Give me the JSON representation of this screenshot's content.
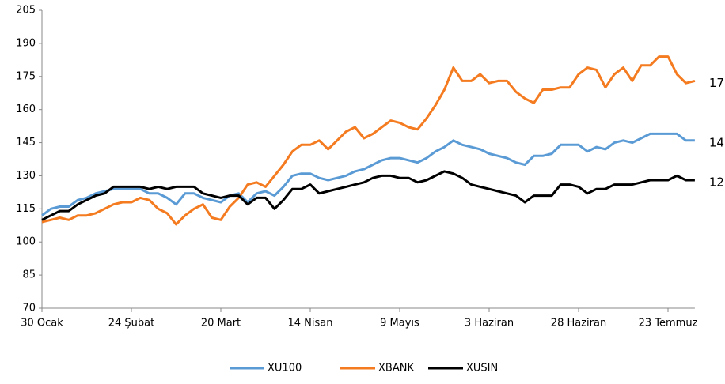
{
  "chart_data": {
    "type": "line",
    "categories": [
      "30 Ocak",
      null,
      null,
      null,
      null,
      null,
      null,
      null,
      null,
      null,
      "24 Şubat",
      null,
      null,
      null,
      null,
      null,
      null,
      null,
      null,
      null,
      "20 Mart",
      null,
      null,
      null,
      null,
      null,
      null,
      null,
      null,
      null,
      "14 Nisan",
      null,
      null,
      null,
      null,
      null,
      null,
      null,
      null,
      null,
      "9 Mayıs",
      null,
      null,
      null,
      null,
      null,
      null,
      null,
      null,
      null,
      "3 Haziran",
      null,
      null,
      null,
      null,
      null,
      null,
      null,
      null,
      null,
      "28 Haziran",
      null,
      null,
      null,
      null,
      null,
      null,
      null,
      null,
      null,
      "23 Temmuz",
      null,
      null,
      null
    ],
    "series": [
      {
        "name": "XU100",
        "color": "#5b9bd5",
        "values": [
          112,
          115,
          116,
          116,
          119,
          120,
          122,
          123,
          124,
          124,
          124,
          124,
          122,
          122,
          120,
          117,
          122,
          122,
          120,
          119,
          118,
          121,
          122,
          118,
          122,
          123,
          121,
          125,
          130,
          131,
          131,
          129,
          128,
          129,
          130,
          132,
          133,
          135,
          137,
          138,
          138,
          137,
          136,
          138,
          141,
          143,
          146,
          144,
          143,
          142,
          140,
          139,
          138,
          136,
          135,
          139,
          139,
          140,
          144,
          144,
          144,
          141,
          143,
          142,
          145,
          146,
          145,
          147,
          149,
          149,
          149,
          149,
          146,
          146
        ]
      },
      {
        "name": "XBANK",
        "color": "#f47b20",
        "values": [
          109,
          110,
          111,
          110,
          112,
          112,
          113,
          115,
          117,
          118,
          118,
          120,
          119,
          115,
          113,
          108,
          112,
          115,
          117,
          111,
          110,
          116,
          120,
          126,
          127,
          125,
          130,
          135,
          141,
          144,
          144,
          146,
          142,
          146,
          150,
          152,
          147,
          149,
          152,
          155,
          154,
          152,
          151,
          156,
          162,
          169,
          179,
          173,
          173,
          176,
          172,
          173,
          173,
          168,
          165,
          163,
          169,
          169,
          170,
          170,
          176,
          179,
          178,
          170,
          176,
          179,
          173,
          180,
          180,
          184,
          184,
          176,
          172,
          173
        ]
      },
      {
        "name": "XUSIN",
        "color": "#000000",
        "values": [
          110,
          112,
          114,
          114,
          117,
          119,
          121,
          122,
          125,
          125,
          125,
          125,
          124,
          125,
          124,
          125,
          125,
          125,
          122,
          121,
          120,
          121,
          121,
          117,
          120,
          120,
          115,
          119,
          124,
          124,
          126,
          122,
          123,
          124,
          125,
          126,
          127,
          129,
          130,
          130,
          129,
          129,
          127,
          128,
          130,
          132,
          131,
          129,
          126,
          125,
          124,
          123,
          122,
          121,
          118,
          121,
          121,
          121,
          126,
          126,
          125,
          122,
          124,
          124,
          126,
          126,
          126,
          127,
          128,
          128,
          128,
          130,
          128,
          128
        ]
      }
    ],
    "ylim": [
      70,
      205
    ],
    "yticks": [
      70,
      85,
      100,
      115,
      130,
      145,
      160,
      175,
      190,
      205
    ],
    "grid": false,
    "legend": "bottom"
  }
}
